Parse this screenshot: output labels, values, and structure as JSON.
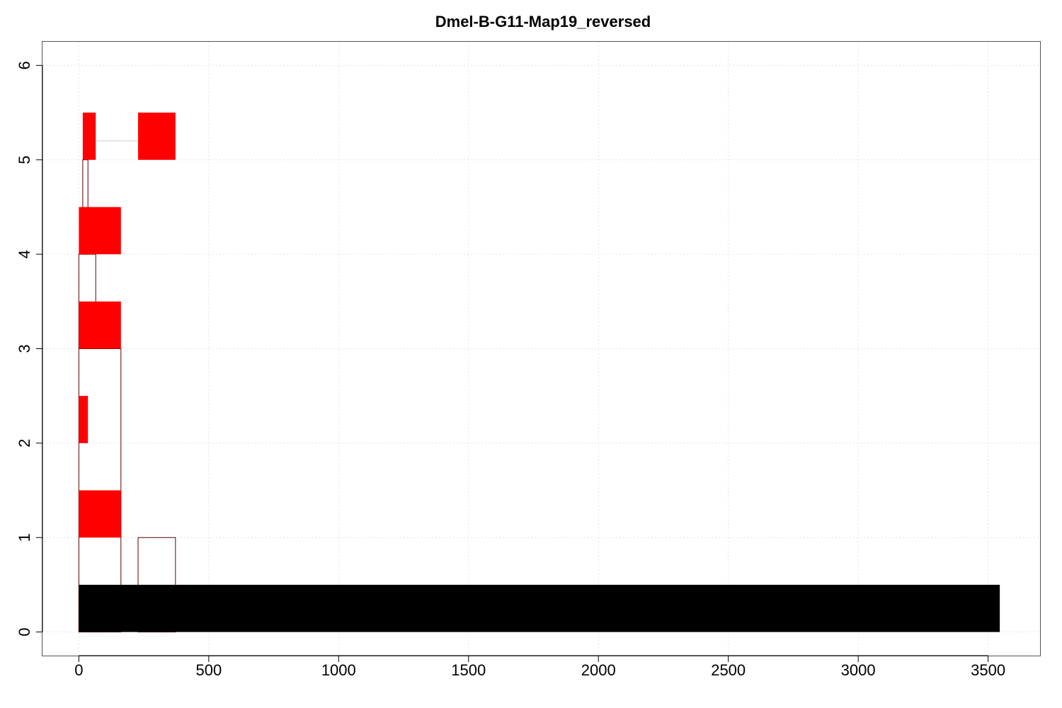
{
  "chart_data": {
    "type": "feature-map",
    "title": "Dmel-B-G11-Map19_reversed",
    "xlabel": "",
    "ylabel": "",
    "xlim": [
      -140,
      3700
    ],
    "ylim": [
      -0.25,
      6.25
    ],
    "x_ticks": [
      0,
      500,
      1000,
      1500,
      2000,
      2500,
      3000,
      3500
    ],
    "y_ticks": [
      0,
      1,
      2,
      3,
      4,
      5,
      6
    ],
    "grid": true,
    "colors": {
      "feature": "#ff0000",
      "base": "#000000",
      "outline": "#5a0000",
      "connector": "#c8c8c8",
      "grid": "#e3e3e3"
    },
    "base_track": {
      "x0": 0,
      "x1": 3545,
      "y0": 0,
      "y1": 0.5
    },
    "features": [
      {
        "row": 5,
        "x0": 15,
        "x1": 65,
        "y0": 5,
        "y1": 5.5
      },
      {
        "row": 5,
        "x0": 228,
        "x1": 372,
        "y0": 5,
        "y1": 5.5
      },
      {
        "row": 4,
        "x0": 0,
        "x1": 162,
        "y0": 4,
        "y1": 4.5
      },
      {
        "row": 3,
        "x0": 0,
        "x1": 162,
        "y0": 3,
        "y1": 3.5
      },
      {
        "row": 2,
        "x0": 0,
        "x1": 35,
        "y0": 2,
        "y1": 2.5
      },
      {
        "row": 1,
        "x0": 0,
        "x1": 162,
        "y0": 1,
        "y1": 1.5
      }
    ],
    "connectors": [
      {
        "x0": 65,
        "x1": 228,
        "y": 5.2
      }
    ],
    "outlines": [
      {
        "x0": 15,
        "x1": 35,
        "y0": 4,
        "y1": 5
      },
      {
        "x0": 0,
        "x1": 65,
        "y0": 3,
        "y1": 4
      },
      {
        "x0": 0,
        "x1": 162,
        "y0": 0,
        "y1": 3
      },
      {
        "x0": 228,
        "x1": 372,
        "y0": 0,
        "y1": 1
      }
    ]
  }
}
